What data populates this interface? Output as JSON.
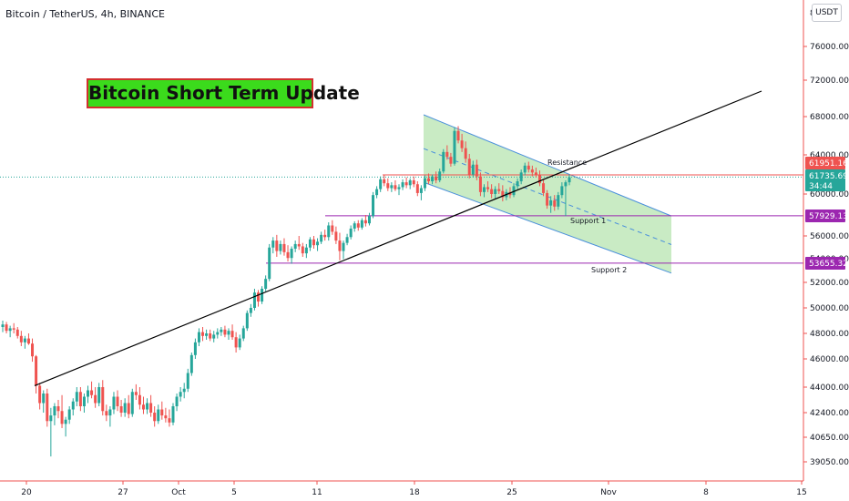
{
  "header": {
    "symbol_title": "Bitcoin / TetherUS, 4h, BINANCE",
    "currency": "USDT"
  },
  "headline": "Bitcoin Short Term Update",
  "annotations": {
    "resistance": "Resistance",
    "support1": "Support 1",
    "support2": "Support 2"
  },
  "colors": {
    "up": "#26a69a",
    "down": "#ef5350",
    "channel_fill": "#b7e4b0",
    "channel_line": "#4a8fdc",
    "support_line": "#9c27b0",
    "resistance_line": "#ef5350",
    "trendline": "#000000",
    "headline_bg": "#3bdb1c",
    "headline_border": "#d32f2f"
  },
  "chart_data": {
    "type": "candlestick",
    "symbol": "Bitcoin / TetherUS",
    "interval": "4h",
    "exchange": "BINANCE",
    "y_axis": {
      "position": "right",
      "ticks": [
        "39050.00",
        "40650.00",
        "42400.00",
        "44000.00",
        "46000.00",
        "48000.00",
        "50000.00",
        "52000.00",
        "56000.00",
        "60000.00",
        "64000.00",
        "68000.00",
        "72000.00",
        "76000.00"
      ],
      "top_tick_partial": "8",
      "obscured_tick_partial": "54000.00"
    },
    "x_axis": {
      "ticks": [
        "20",
        "27",
        "Oct",
        "5",
        "11",
        "18",
        "25",
        "Nov",
        "8",
        "15"
      ]
    },
    "price_labels": [
      {
        "name": "resistance",
        "text": "61951.16",
        "color": "#ef5350"
      },
      {
        "name": "last-price",
        "text": "61735.69",
        "color": "#26a69a",
        "countdown": "34:44"
      },
      {
        "name": "support-1",
        "text": "57929.13",
        "color": "#9c27b0"
      },
      {
        "name": "support-2",
        "text": "53655.32",
        "color": "#9c27b0"
      }
    ],
    "levels": {
      "resistance": 61951.16,
      "last": 61735.69,
      "support1": 57929.13,
      "support2": 53655.32
    },
    "trendline": {
      "from": {
        "x": "20",
        "price": 44100
      },
      "to": {
        "x": "8",
        "price": 70800
      }
    },
    "channel": {
      "top": [
        {
          "x": "18",
          "price": 68200
        },
        {
          "x": "8",
          "price": 57900
        }
      ],
      "bottom": [
        {
          "x": "18",
          "price": 61200
        },
        {
          "x": "8",
          "price": 52800
        }
      ]
    },
    "candles": [
      {
        "o": 48500,
        "h": 49000,
        "l": 48100,
        "c": 48700
      },
      {
        "o": 48700,
        "h": 48900,
        "l": 48000,
        "c": 48200
      },
      {
        "o": 48200,
        "h": 48600,
        "l": 47700,
        "c": 48400
      },
      {
        "o": 48400,
        "h": 48800,
        "l": 48000,
        "c": 48300
      },
      {
        "o": 48300,
        "h": 48500,
        "l": 47600,
        "c": 47800
      },
      {
        "o": 47800,
        "h": 48200,
        "l": 47000,
        "c": 47300
      },
      {
        "o": 47300,
        "h": 47800,
        "l": 46800,
        "c": 47600
      },
      {
        "o": 47600,
        "h": 48000,
        "l": 47100,
        "c": 47200
      },
      {
        "o": 47200,
        "h": 47600,
        "l": 45800,
        "c": 46200
      },
      {
        "o": 46200,
        "h": 46300,
        "l": 43600,
        "c": 44100
      },
      {
        "o": 44100,
        "h": 44300,
        "l": 42600,
        "c": 43000
      },
      {
        "o": 43000,
        "h": 43800,
        "l": 42400,
        "c": 43600
      },
      {
        "o": 43600,
        "h": 43900,
        "l": 41400,
        "c": 41800
      },
      {
        "o": 41800,
        "h": 42700,
        "l": 39400,
        "c": 42200
      },
      {
        "o": 42200,
        "h": 43000,
        "l": 41500,
        "c": 42800
      },
      {
        "o": 42800,
        "h": 43200,
        "l": 42000,
        "c": 42500
      },
      {
        "o": 42500,
        "h": 43500,
        "l": 41300,
        "c": 41600
      },
      {
        "o": 41600,
        "h": 42100,
        "l": 40700,
        "c": 41900
      },
      {
        "o": 41900,
        "h": 42800,
        "l": 41600,
        "c": 42600
      },
      {
        "o": 42600,
        "h": 43300,
        "l": 42200,
        "c": 43100
      },
      {
        "o": 43100,
        "h": 44000,
        "l": 42800,
        "c": 43700
      },
      {
        "o": 43700,
        "h": 44000,
        "l": 42500,
        "c": 42800
      },
      {
        "o": 42800,
        "h": 43600,
        "l": 42400,
        "c": 43400
      },
      {
        "o": 43400,
        "h": 44100,
        "l": 43000,
        "c": 43800
      },
      {
        "o": 43800,
        "h": 44400,
        "l": 43300,
        "c": 43500
      },
      {
        "o": 43500,
        "h": 44000,
        "l": 42700,
        "c": 43000
      },
      {
        "o": 43000,
        "h": 44300,
        "l": 42800,
        "c": 44000
      },
      {
        "o": 44000,
        "h": 44500,
        "l": 42200,
        "c": 42500
      },
      {
        "o": 42500,
        "h": 42900,
        "l": 41800,
        "c": 42200
      },
      {
        "o": 42200,
        "h": 42800,
        "l": 41400,
        "c": 42600
      },
      {
        "o": 42600,
        "h": 43700,
        "l": 42300,
        "c": 43400
      },
      {
        "o": 43400,
        "h": 43800,
        "l": 42500,
        "c": 42800
      },
      {
        "o": 42800,
        "h": 43200,
        "l": 42100,
        "c": 42400
      },
      {
        "o": 42400,
        "h": 43300,
        "l": 42100,
        "c": 43000
      },
      {
        "o": 43000,
        "h": 43500,
        "l": 42000,
        "c": 42300
      },
      {
        "o": 42300,
        "h": 43900,
        "l": 42100,
        "c": 43700
      },
      {
        "o": 43700,
        "h": 44200,
        "l": 43200,
        "c": 43500
      },
      {
        "o": 43500,
        "h": 44000,
        "l": 42600,
        "c": 42900
      },
      {
        "o": 42900,
        "h": 43400,
        "l": 42300,
        "c": 42600
      },
      {
        "o": 42600,
        "h": 43300,
        "l": 42300,
        "c": 43000
      },
      {
        "o": 43000,
        "h": 43500,
        "l": 42100,
        "c": 42400
      },
      {
        "o": 42400,
        "h": 42800,
        "l": 41400,
        "c": 41800
      },
      {
        "o": 41800,
        "h": 42900,
        "l": 41600,
        "c": 42600
      },
      {
        "o": 42600,
        "h": 43100,
        "l": 41900,
        "c": 42200
      },
      {
        "o": 42200,
        "h": 42700,
        "l": 41700,
        "c": 42000
      },
      {
        "o": 42000,
        "h": 42600,
        "l": 41400,
        "c": 41700
      },
      {
        "o": 41700,
        "h": 43000,
        "l": 41500,
        "c": 42800
      },
      {
        "o": 42800,
        "h": 43600,
        "l": 42500,
        "c": 43400
      },
      {
        "o": 43400,
        "h": 44000,
        "l": 43100,
        "c": 43700
      },
      {
        "o": 43700,
        "h": 44300,
        "l": 43300,
        "c": 43900
      },
      {
        "o": 43900,
        "h": 45300,
        "l": 43700,
        "c": 45000
      },
      {
        "o": 45000,
        "h": 46500,
        "l": 44800,
        "c": 46300
      },
      {
        "o": 46300,
        "h": 47600,
        "l": 46000,
        "c": 47300
      },
      {
        "o": 47300,
        "h": 48400,
        "l": 47000,
        "c": 48100
      },
      {
        "o": 48100,
        "h": 48500,
        "l": 47400,
        "c": 47800
      },
      {
        "o": 47800,
        "h": 48300,
        "l": 47500,
        "c": 48000
      },
      {
        "o": 48000,
        "h": 48300,
        "l": 47400,
        "c": 47600
      },
      {
        "o": 47600,
        "h": 48200,
        "l": 47300,
        "c": 47900
      },
      {
        "o": 47900,
        "h": 48400,
        "l": 47600,
        "c": 48100
      },
      {
        "o": 48100,
        "h": 48500,
        "l": 47800,
        "c": 48300
      },
      {
        "o": 48300,
        "h": 48600,
        "l": 47700,
        "c": 47900
      },
      {
        "o": 47900,
        "h": 48400,
        "l": 47500,
        "c": 48200
      },
      {
        "o": 48200,
        "h": 48700,
        "l": 47500,
        "c": 47700
      },
      {
        "o": 47700,
        "h": 48100,
        "l": 46500,
        "c": 46900
      },
      {
        "o": 46900,
        "h": 47900,
        "l": 46700,
        "c": 47600
      },
      {
        "o": 47600,
        "h": 48600,
        "l": 47400,
        "c": 48400
      },
      {
        "o": 48400,
        "h": 49800,
        "l": 48200,
        "c": 49600
      },
      {
        "o": 49600,
        "h": 50300,
        "l": 49300,
        "c": 50000
      },
      {
        "o": 50000,
        "h": 51500,
        "l": 49800,
        "c": 51200
      },
      {
        "o": 51200,
        "h": 51400,
        "l": 50100,
        "c": 50500
      },
      {
        "o": 50500,
        "h": 51700,
        "l": 50300,
        "c": 51500
      },
      {
        "o": 51500,
        "h": 52600,
        "l": 51300,
        "c": 52300
      },
      {
        "o": 52300,
        "h": 55300,
        "l": 52100,
        "c": 55000
      },
      {
        "o": 55000,
        "h": 55900,
        "l": 54500,
        "c": 55600
      },
      {
        "o": 55600,
        "h": 56100,
        "l": 54200,
        "c": 54700
      },
      {
        "o": 54700,
        "h": 55600,
        "l": 54400,
        "c": 55300
      },
      {
        "o": 55300,
        "h": 55800,
        "l": 54300,
        "c": 54600
      },
      {
        "o": 54600,
        "h": 55200,
        "l": 53800,
        "c": 54100
      },
      {
        "o": 54100,
        "h": 55100,
        "l": 53600,
        "c": 54900
      },
      {
        "o": 54900,
        "h": 55600,
        "l": 54600,
        "c": 55300
      },
      {
        "o": 55300,
        "h": 56000,
        "l": 54800,
        "c": 55100
      },
      {
        "o": 55100,
        "h": 55400,
        "l": 54200,
        "c": 54500
      },
      {
        "o": 54500,
        "h": 55300,
        "l": 54100,
        "c": 55000
      },
      {
        "o": 55000,
        "h": 55900,
        "l": 54700,
        "c": 55700
      },
      {
        "o": 55700,
        "h": 56000,
        "l": 54900,
        "c": 55200
      },
      {
        "o": 55200,
        "h": 55800,
        "l": 54700,
        "c": 55500
      },
      {
        "o": 55500,
        "h": 56400,
        "l": 55300,
        "c": 56100
      },
      {
        "o": 56100,
        "h": 56600,
        "l": 55600,
        "c": 55900
      },
      {
        "o": 55900,
        "h": 57300,
        "l": 55600,
        "c": 57000
      },
      {
        "o": 57000,
        "h": 57500,
        "l": 56100,
        "c": 56400
      },
      {
        "o": 56400,
        "h": 56900,
        "l": 55300,
        "c": 55600
      },
      {
        "o": 55600,
        "h": 56300,
        "l": 53900,
        "c": 54700
      },
      {
        "o": 54700,
        "h": 55600,
        "l": 54000,
        "c": 55400
      },
      {
        "o": 55400,
        "h": 56200,
        "l": 55200,
        "c": 55900
      },
      {
        "o": 55900,
        "h": 57000,
        "l": 55700,
        "c": 56700
      },
      {
        "o": 56700,
        "h": 57400,
        "l": 56400,
        "c": 57200
      },
      {
        "o": 57200,
        "h": 57500,
        "l": 56500,
        "c": 56800
      },
      {
        "o": 56800,
        "h": 57700,
        "l": 56600,
        "c": 57500
      },
      {
        "o": 57500,
        "h": 58000,
        "l": 56900,
        "c": 57200
      },
      {
        "o": 57200,
        "h": 58200,
        "l": 57000,
        "c": 57900
      },
      {
        "o": 57900,
        "h": 60200,
        "l": 57700,
        "c": 59900
      },
      {
        "o": 59900,
        "h": 60800,
        "l": 59600,
        "c": 60500
      },
      {
        "o": 60500,
        "h": 61800,
        "l": 60200,
        "c": 61500
      },
      {
        "o": 61500,
        "h": 62000,
        "l": 60800,
        "c": 61100
      },
      {
        "o": 61100,
        "h": 61600,
        "l": 60300,
        "c": 60600
      },
      {
        "o": 60600,
        "h": 61200,
        "l": 60200,
        "c": 60900
      },
      {
        "o": 60900,
        "h": 61400,
        "l": 60300,
        "c": 60500
      },
      {
        "o": 60500,
        "h": 61000,
        "l": 59900,
        "c": 60700
      },
      {
        "o": 60700,
        "h": 61500,
        "l": 60400,
        "c": 61200
      },
      {
        "o": 61200,
        "h": 61700,
        "l": 60600,
        "c": 60900
      },
      {
        "o": 60900,
        "h": 61600,
        "l": 60500,
        "c": 61400
      },
      {
        "o": 61400,
        "h": 61800,
        "l": 60700,
        "c": 61000
      },
      {
        "o": 61000,
        "h": 61300,
        "l": 59800,
        "c": 60100
      },
      {
        "o": 60100,
        "h": 60900,
        "l": 59400,
        "c": 60600
      },
      {
        "o": 60600,
        "h": 61900,
        "l": 60300,
        "c": 61600
      },
      {
        "o": 61600,
        "h": 62100,
        "l": 61000,
        "c": 61300
      },
      {
        "o": 61300,
        "h": 62000,
        "l": 61000,
        "c": 61800
      },
      {
        "o": 61800,
        "h": 62300,
        "l": 61100,
        "c": 61400
      },
      {
        "o": 61400,
        "h": 62600,
        "l": 61200,
        "c": 62300
      },
      {
        "o": 62300,
        "h": 64600,
        "l": 62100,
        "c": 64300
      },
      {
        "o": 64300,
        "h": 65000,
        "l": 63500,
        "c": 63800
      },
      {
        "o": 63800,
        "h": 64200,
        "l": 62800,
        "c": 63100
      },
      {
        "o": 63100,
        "h": 66900,
        "l": 62900,
        "c": 66500
      },
      {
        "o": 66500,
        "h": 67000,
        "l": 65200,
        "c": 65500
      },
      {
        "o": 65500,
        "h": 66200,
        "l": 64300,
        "c": 64700
      },
      {
        "o": 64700,
        "h": 65400,
        "l": 63200,
        "c": 63600
      },
      {
        "o": 63600,
        "h": 64100,
        "l": 61600,
        "c": 62000
      },
      {
        "o": 62000,
        "h": 63400,
        "l": 61700,
        "c": 63000
      },
      {
        "o": 63000,
        "h": 63500,
        "l": 61400,
        "c": 61800
      },
      {
        "o": 61800,
        "h": 62200,
        "l": 59800,
        "c": 60200
      },
      {
        "o": 60200,
        "h": 61000,
        "l": 59700,
        "c": 60700
      },
      {
        "o": 60700,
        "h": 61300,
        "l": 60200,
        "c": 60500
      },
      {
        "o": 60500,
        "h": 61000,
        "l": 59600,
        "c": 60000
      },
      {
        "o": 60000,
        "h": 60800,
        "l": 59500,
        "c": 60500
      },
      {
        "o": 60500,
        "h": 61100,
        "l": 60000,
        "c": 60300
      },
      {
        "o": 60300,
        "h": 60900,
        "l": 59300,
        "c": 59700
      },
      {
        "o": 59700,
        "h": 60500,
        "l": 59400,
        "c": 60200
      },
      {
        "o": 60200,
        "h": 60700,
        "l": 59600,
        "c": 59900
      },
      {
        "o": 59900,
        "h": 61100,
        "l": 59700,
        "c": 60800
      },
      {
        "o": 60800,
        "h": 61600,
        "l": 60500,
        "c": 61300
      },
      {
        "o": 61300,
        "h": 62500,
        "l": 61000,
        "c": 62200
      },
      {
        "o": 62200,
        "h": 63200,
        "l": 61900,
        "c": 62900
      },
      {
        "o": 62900,
        "h": 63300,
        "l": 62200,
        "c": 62500
      },
      {
        "o": 62500,
        "h": 62900,
        "l": 61800,
        "c": 62200
      },
      {
        "o": 62200,
        "h": 62700,
        "l": 61700,
        "c": 62000
      },
      {
        "o": 62000,
        "h": 62400,
        "l": 60800,
        "c": 61100
      },
      {
        "o": 61100,
        "h": 61500,
        "l": 59800,
        "c": 60100
      },
      {
        "o": 60100,
        "h": 60400,
        "l": 58600,
        "c": 58900
      },
      {
        "o": 58900,
        "h": 59800,
        "l": 58200,
        "c": 59400
      },
      {
        "o": 59400,
        "h": 59900,
        "l": 58400,
        "c": 58800
      },
      {
        "o": 58800,
        "h": 60200,
        "l": 58500,
        "c": 59900
      },
      {
        "o": 59900,
        "h": 61200,
        "l": 59600,
        "c": 60800
      },
      {
        "o": 60800,
        "h": 61400,
        "l": 57900,
        "c": 61200
      },
      {
        "o": 61200,
        "h": 62000,
        "l": 60900,
        "c": 61700
      }
    ]
  }
}
